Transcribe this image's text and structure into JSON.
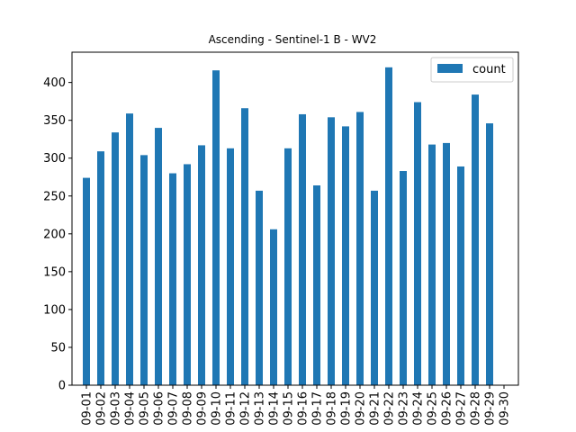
{
  "chart_data": {
    "type": "bar",
    "title": "Ascending - Sentinel-1 B - WV2",
    "xlabel": "",
    "ylabel": "",
    "categories": [
      "09-01",
      "09-02",
      "09-03",
      "09-04",
      "09-05",
      "09-06",
      "09-07",
      "09-08",
      "09-09",
      "09-10",
      "09-11",
      "09-12",
      "09-13",
      "09-14",
      "09-15",
      "09-16",
      "09-17",
      "09-18",
      "09-19",
      "09-20",
      "09-21",
      "09-22",
      "09-23",
      "09-24",
      "09-25",
      "09-26",
      "09-27",
      "09-28",
      "09-29",
      "09-30"
    ],
    "series": [
      {
        "name": "count",
        "color": "#1f77b4",
        "values": [
          274,
          309,
          334,
          359,
          304,
          340,
          280,
          292,
          317,
          416,
          313,
          366,
          257,
          206,
          313,
          358,
          264,
          354,
          342,
          361,
          257,
          420,
          283,
          374,
          318,
          320,
          289,
          384,
          346,
          0
        ]
      }
    ],
    "ylim": [
      0,
      440
    ],
    "yticks": [
      0,
      50,
      100,
      150,
      200,
      250,
      300,
      350,
      400
    ],
    "grid": false,
    "legend_position": "top-right"
  }
}
